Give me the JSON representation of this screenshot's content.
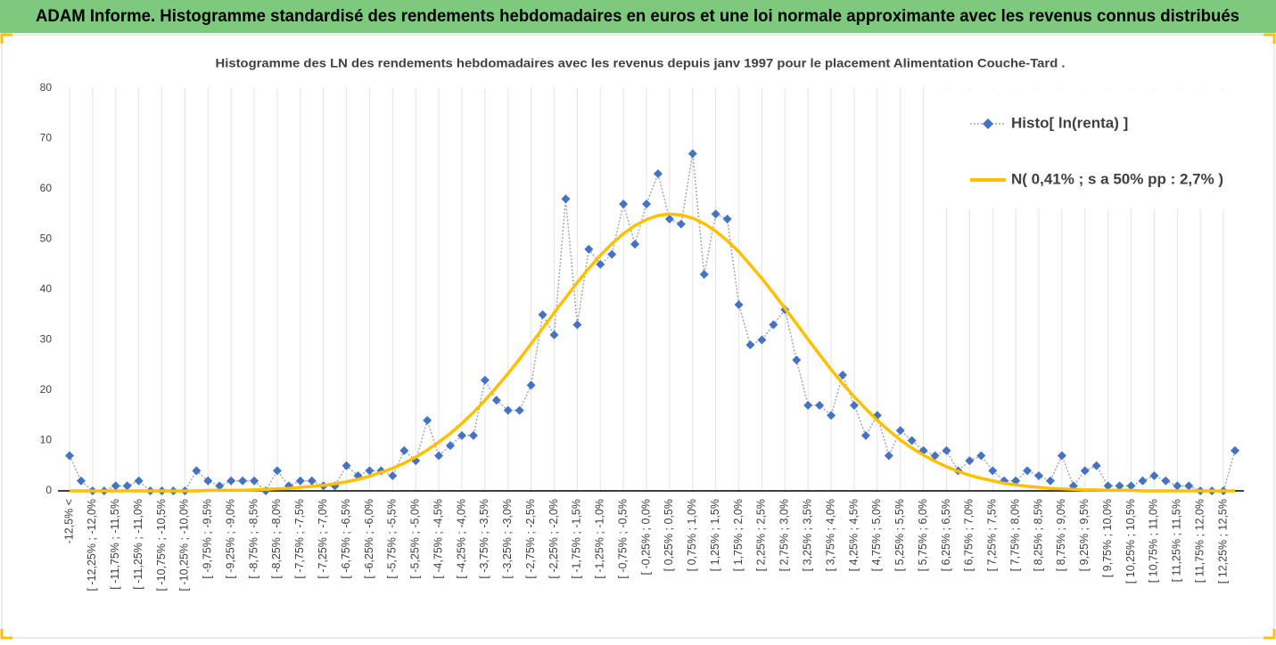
{
  "header": {
    "title": "ADAM Informe. Histogramme standardisé des rendements hebdomadaires en euros et une loi normale approximante avec les revenus connus distribués"
  },
  "chart_data": {
    "type": "line",
    "title": "Histogramme des LN des rendements hebdomadaires avec les revenus depuis janv 1997 pour le placement Alimentation Couche-Tard .",
    "categories": [
      "-12,5% <",
      null,
      "[ -12,25% ; -12,0%",
      null,
      "[ -11,75% ; -11,5%",
      null,
      "[ -11,25% ; -11,0%",
      null,
      "[ -10,75% ; -10,5%",
      null,
      "[ -10,25% ; -10,0%",
      null,
      "[ -9,75% ; -9,5%",
      null,
      "[ -9,25% ; -9,0%",
      null,
      "[ -8,75% ; -8,5%",
      null,
      "[ -8,25% ; -8,0%",
      null,
      "[ -7,75% ; -7,5%",
      null,
      "[ -7,25% ; -7,0%",
      null,
      "[ -6,75% ; -6,5%",
      null,
      "[ -6,25% ; -6,0%",
      null,
      "[ -5,75% ; -5,5%",
      null,
      "[ -5,25% ; -5,0%",
      null,
      "[ -4,75% ; -4,5%",
      null,
      "[ -4,25% ; -4,0%",
      null,
      "[ -3,75% ; -3,5%",
      null,
      "[ -3,25% ; -3,0%",
      null,
      "[ -2,75% ; -2,5%",
      null,
      "[ -2,25% ; -2,0%",
      null,
      "[ -1,75% ; -1,5%",
      null,
      "[ -1,25% ; -1,0%",
      null,
      "[ -0,75% ; -0,5%",
      null,
      "[ -0,25% ; 0,0%",
      null,
      "[ 0,25% ; 0,5%",
      null,
      "[ 0,75% ; 1,0%",
      null,
      "[ 1,25% ; 1,5%",
      null,
      "[ 1,75% ; 2,0%",
      null,
      "[ 2,25% ; 2,5%",
      null,
      "[ 2,75% ; 3,0%",
      null,
      "[ 3,25% ; 3,5%",
      null,
      "[ 3,75% ; 4,0%",
      null,
      "[ 4,25% ; 4,5%",
      null,
      "[ 4,75% ; 5,0%",
      null,
      "[ 5,25% ; 5,5%",
      null,
      "[ 5,75% ; 6,0%",
      null,
      "[ 6,25% ; 6,5%",
      null,
      "[ 6,75% ; 7,0%",
      null,
      "[ 7,25% ; 7,5%",
      null,
      "[ 7,75% ; 8,0%",
      null,
      "[ 8,25% ; 8,5%",
      null,
      "[ 8,75% ; 9,0%",
      null,
      "[ 9,25% ; 9,5%",
      null,
      "[ 9,75% ; 10,0%",
      null,
      "[ 10,25% ; 10,5%",
      null,
      "[ 10,75% ; 11,0%",
      null,
      "[ 11,25% ; 11,5%",
      null,
      "[ 11,75% ; 12,0%",
      null,
      "[ 12,25% ; 12,5%",
      null
    ],
    "series": [
      {
        "name": "Histo[ ln(renta) ]",
        "color": "#4472c4",
        "line_color": "#a6a6a6",
        "marker": "diamond",
        "values": [
          7,
          2,
          0,
          0,
          1,
          1,
          2,
          0,
          0,
          0,
          0,
          4,
          2,
          1,
          2,
          2,
          2,
          0,
          4,
          1,
          2,
          2,
          1,
          1,
          5,
          3,
          4,
          4,
          3,
          8,
          6,
          14,
          7,
          9,
          11,
          11,
          22,
          18,
          16,
          16,
          21,
          35,
          31,
          58,
          33,
          48,
          45,
          47,
          57,
          49,
          57,
          63,
          54,
          53,
          67,
          43,
          55,
          54,
          37,
          29,
          30,
          33,
          36,
          26,
          17,
          17,
          15,
          23,
          17,
          11,
          15,
          7,
          12,
          10,
          8,
          7,
          8,
          4,
          6,
          7,
          4,
          2,
          2,
          4,
          3,
          2,
          7,
          1,
          4,
          5,
          1,
          1,
          1,
          2,
          3,
          2,
          1,
          1,
          0,
          0,
          0,
          8
        ]
      },
      {
        "name": "N( 0,41% ; s a 50% pp : 2,7% )",
        "color": "#ffc000",
        "marker": "none",
        "values": [
          0,
          0,
          0,
          0,
          0,
          0,
          0,
          0,
          0,
          0,
          0,
          0,
          0.1,
          0.1,
          0.1,
          0.1,
          0.2,
          0.3,
          0.4,
          0.5,
          0.7,
          0.9,
          1.1,
          1.4,
          1.8,
          2.3,
          2.9,
          3.7,
          4.5,
          5.5,
          6.7,
          8.1,
          9.7,
          11.4,
          13.4,
          15.6,
          18.0,
          20.6,
          23.3,
          26.2,
          29.2,
          32.3,
          35.4,
          38.4,
          41.4,
          44.2,
          46.8,
          49.1,
          51.1,
          52.7,
          53.9,
          54.7,
          55.0,
          54.8,
          54.2,
          53.1,
          51.6,
          49.7,
          47.5,
          44.9,
          42.2,
          39.3,
          36.3,
          33.2,
          30.1,
          27.1,
          24.1,
          21.3,
          18.7,
          16.3,
          14.0,
          12.0,
          10.1,
          8.5,
          7.1,
          5.9,
          4.8,
          3.9,
          3.1,
          2.5,
          2.0,
          1.5,
          1.2,
          0.9,
          0.7,
          0.5,
          0.4,
          0.3,
          0.2,
          0.2,
          0.1,
          0.1,
          0.1,
          0,
          0,
          0,
          0,
          0,
          0,
          0,
          0,
          0
        ]
      }
    ],
    "ylim": [
      0,
      80
    ],
    "yticks": [
      0,
      10,
      20,
      30,
      40,
      50,
      60,
      70,
      80
    ],
    "grid": "x",
    "legend": "top-right"
  }
}
